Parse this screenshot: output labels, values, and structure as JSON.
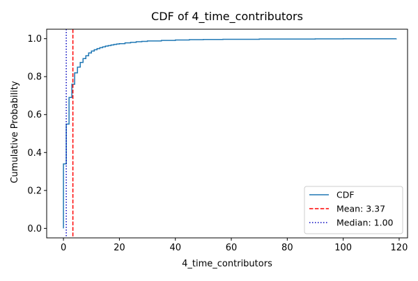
{
  "chart_data": {
    "type": "line",
    "title": "CDF of 4_time_contributors",
    "xlabel": "4_time_contributors",
    "ylabel": "Cumulative Probability",
    "xlim": [
      -6,
      123
    ],
    "ylim": [
      -0.05,
      1.05
    ],
    "xticks": [
      0,
      20,
      40,
      60,
      80,
      100,
      120
    ],
    "yticks": [
      0.0,
      0.2,
      0.4,
      0.6,
      0.8,
      1.0
    ],
    "xtick_labels": [
      "0",
      "20",
      "40",
      "60",
      "80",
      "100",
      "120"
    ],
    "ytick_labels": [
      "0.0",
      "0.2",
      "0.4",
      "0.6",
      "0.8",
      "1.0"
    ],
    "grid": false,
    "legend_position": "lower-right",
    "series": [
      {
        "name": "CDF",
        "color": "#1f77b4",
        "style": "step",
        "x": [
          0,
          1,
          2,
          3,
          4,
          5,
          6,
          7,
          8,
          9,
          10,
          11,
          12,
          13,
          14,
          15,
          16,
          17,
          18,
          19,
          20,
          22,
          24,
          26,
          28,
          30,
          35,
          40,
          45,
          50,
          57,
          70,
          90,
          100,
          110,
          119
        ],
        "y": [
          0.34,
          0.55,
          0.69,
          0.76,
          0.82,
          0.85,
          0.875,
          0.895,
          0.91,
          0.925,
          0.935,
          0.942,
          0.948,
          0.953,
          0.957,
          0.961,
          0.964,
          0.967,
          0.97,
          0.972,
          0.974,
          0.978,
          0.981,
          0.984,
          0.986,
          0.988,
          0.991,
          0.993,
          0.995,
          0.996,
          0.997,
          0.998,
          0.999,
          0.9995,
          0.9998,
          1.0
        ]
      }
    ],
    "reference_lines": [
      {
        "name": "Mean: 3.37",
        "x": 3.37,
        "color": "#ff0000",
        "dash": "dashed"
      },
      {
        "name": "Median: 1.00",
        "x": 1.0,
        "color": "#0000bf",
        "dash": "dotted"
      }
    ],
    "legend": [
      "CDF",
      "Mean: 3.37",
      "Median: 1.00"
    ]
  }
}
